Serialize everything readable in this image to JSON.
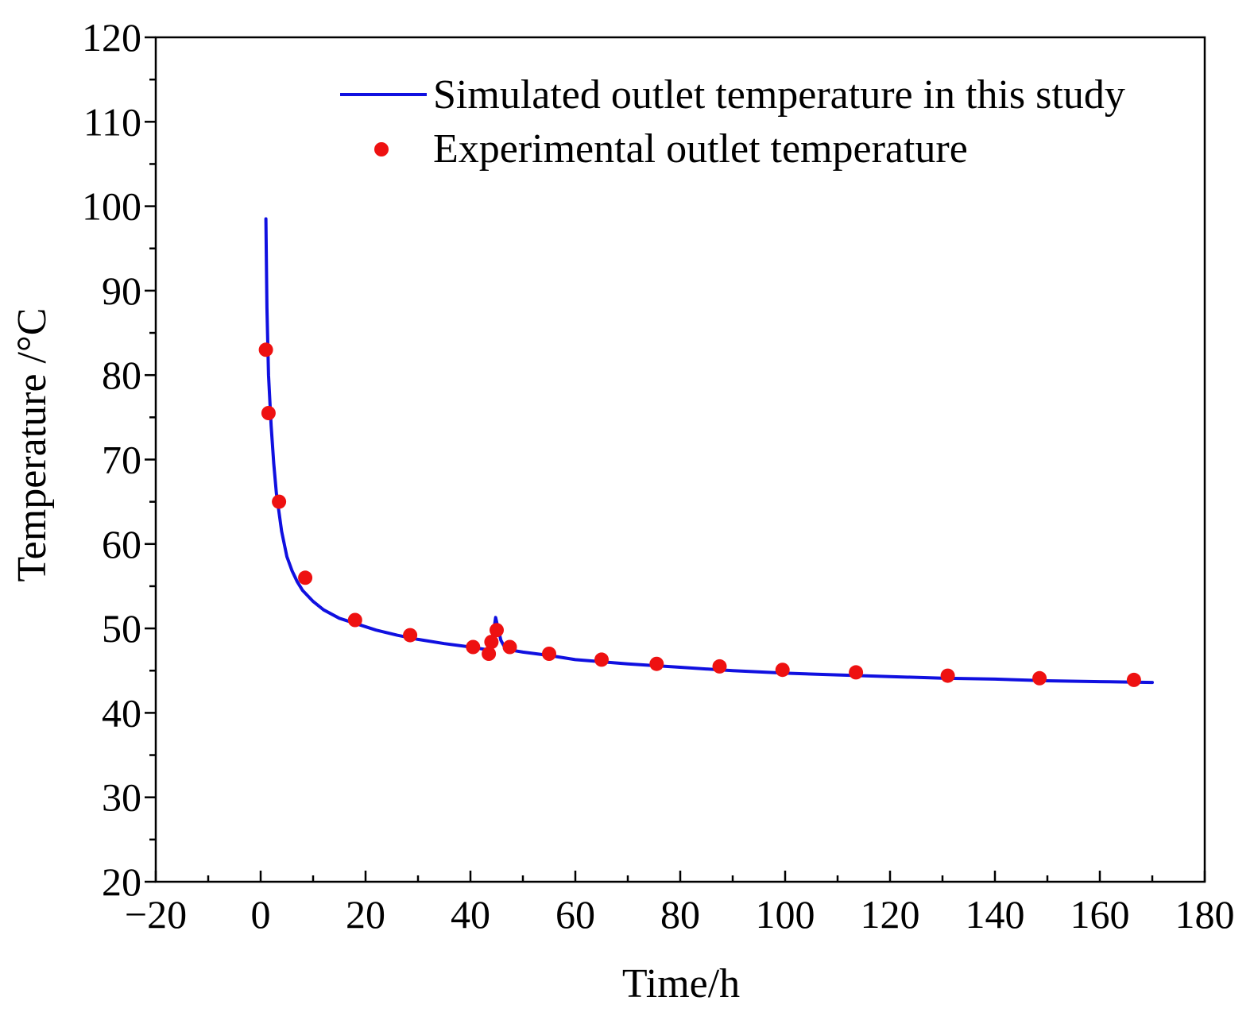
{
  "chart_data": {
    "type": "line+scatter",
    "title": "",
    "xlabel": "Time/h",
    "ylabel": "Temperature /°C",
    "xlim": [
      -20,
      180
    ],
    "ylim": [
      20,
      120
    ],
    "xticks": [
      -20,
      0,
      20,
      40,
      60,
      80,
      100,
      120,
      140,
      160,
      180
    ],
    "xtick_labels": [
      "−20",
      "0",
      "20",
      "40",
      "60",
      "80",
      "100",
      "120",
      "140",
      "160",
      "180"
    ],
    "yticks": [
      20,
      30,
      40,
      50,
      60,
      70,
      80,
      90,
      100,
      110,
      120
    ],
    "ytick_labels": [
      "20",
      "30",
      "40",
      "50",
      "60",
      "70",
      "80",
      "90",
      "100",
      "110",
      "120"
    ],
    "legend_position": "top-right",
    "colors": {
      "simulated": "#1010e0",
      "experimental": "#ee1111",
      "axis": "#000000"
    },
    "series": [
      {
        "name": "Simulated outlet temperature in this study",
        "kind": "line",
        "x": [
          1.0,
          1.2,
          1.5,
          2,
          2.5,
          3,
          4,
          5,
          6,
          7,
          8,
          10,
          12,
          15,
          18,
          22,
          26,
          30,
          35,
          40,
          43,
          44,
          44.5,
          44.8,
          45.2,
          45.8,
          46.5,
          48,
          50,
          55,
          60,
          70,
          80,
          90,
          100,
          110,
          120,
          130,
          140,
          150,
          160,
          170
        ],
        "values": [
          98.5,
          88,
          80,
          74,
          69.5,
          66,
          61.5,
          58.5,
          56.8,
          55.5,
          54.5,
          53.2,
          52.2,
          51.2,
          50.6,
          49.8,
          49.2,
          48.7,
          48.2,
          47.8,
          47.5,
          48.2,
          50.0,
          51.3,
          50.2,
          48.6,
          47.8,
          47.4,
          47.2,
          46.8,
          46.3,
          45.8,
          45.4,
          45.0,
          44.7,
          44.5,
          44.3,
          44.1,
          44.0,
          43.8,
          43.7,
          43.6
        ]
      },
      {
        "name": "Experimental outlet temperature",
        "kind": "scatter",
        "x": [
          1.0,
          1.5,
          3.5,
          8.5,
          18,
          28.5,
          40.5,
          43.5,
          44,
          45,
          47.5,
          55,
          65,
          75.5,
          87.5,
          99.5,
          113.5,
          131,
          148.5,
          166.5
        ],
        "values": [
          83,
          75.5,
          65,
          56,
          51,
          49.2,
          47.8,
          47,
          48.4,
          49.8,
          47.8,
          47,
          46.3,
          45.8,
          45.5,
          45.1,
          44.8,
          44.4,
          44.1,
          43.9
        ]
      }
    ]
  }
}
